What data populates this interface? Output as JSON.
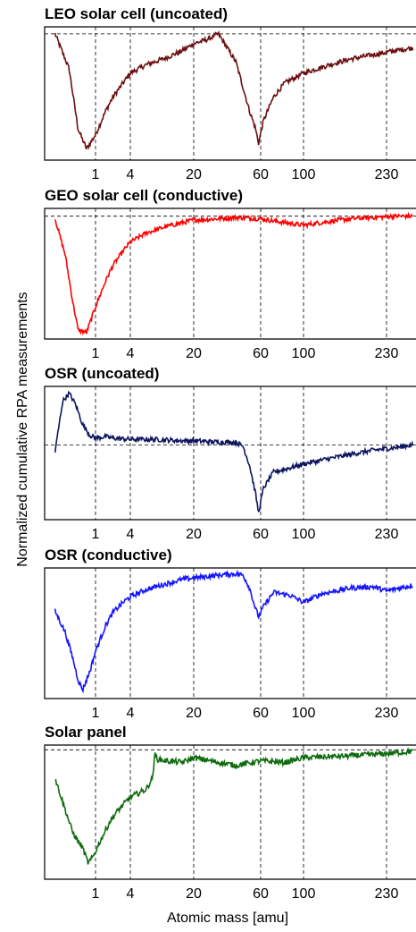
{
  "figure": {
    "ylabel": "Normalized cumulative RPA measurements",
    "xlabel": "Atomic mass [amu]"
  },
  "chart_data": [
    {
      "type": "line",
      "title": "LEO solar cell (uncoated)",
      "xlabel": "",
      "ylabel": "",
      "x_tick_labels": [
        "1",
        "4",
        "20",
        "60",
        "100",
        "230"
      ],
      "x_tick_values": [
        1,
        4,
        20,
        60,
        100,
        230
      ],
      "y_reference": 1.0,
      "grid": "dashed at x ticks and y reference",
      "series": [
        {
          "color": "#6b0f12",
          "x": [
            0.2,
            0.35,
            0.5,
            0.7,
            1,
            1.5,
            2,
            3,
            4,
            6,
            10,
            15,
            20,
            25,
            30,
            40,
            50,
            55,
            58,
            62,
            70,
            80,
            100,
            130,
            160,
            200,
            250,
            300
          ],
          "y": [
            1.0,
            0.75,
            0.32,
            0.18,
            0.28,
            0.45,
            0.55,
            0.65,
            0.72,
            0.78,
            0.83,
            0.88,
            0.93,
            0.96,
            1.0,
            0.8,
            0.45,
            0.33,
            0.22,
            0.38,
            0.55,
            0.65,
            0.72,
            0.78,
            0.82,
            0.85,
            0.88,
            0.9
          ]
        }
      ]
    },
    {
      "type": "line",
      "title": "GEO solar cell (conductive)",
      "xlabel": "",
      "ylabel": "",
      "x_tick_labels": [
        "1",
        "4",
        "20",
        "60",
        "100",
        "230"
      ],
      "x_tick_values": [
        1,
        4,
        20,
        60,
        100,
        230
      ],
      "y_reference": 1.0,
      "grid": "dashed at x ticks and y reference",
      "series": [
        {
          "color": "#ff0000",
          "x": [
            0.2,
            0.3,
            0.4,
            0.5,
            0.7,
            1,
            1.5,
            2,
            3,
            4,
            6,
            10,
            15,
            20,
            30,
            40,
            60,
            80,
            100,
            130,
            160,
            200,
            250,
            300
          ],
          "y": [
            0.98,
            0.7,
            0.35,
            0.12,
            0.1,
            0.3,
            0.5,
            0.62,
            0.73,
            0.8,
            0.87,
            0.92,
            0.95,
            0.97,
            0.98,
            0.99,
            0.98,
            0.95,
            0.93,
            0.96,
            0.98,
            0.99,
            1.0,
            1.0
          ]
        }
      ]
    },
    {
      "type": "line",
      "title": "OSR (uncoated)",
      "xlabel": "",
      "ylabel": "",
      "x_tick_labels": [
        "1",
        "4",
        "20",
        "60",
        "100",
        "230"
      ],
      "x_tick_values": [
        1,
        4,
        20,
        60,
        100,
        230
      ],
      "y_reference": 1.0,
      "grid": "dashed at x ticks and y reference",
      "series": [
        {
          "color": "#0d1560",
          "x": [
            0.2,
            0.27,
            0.35,
            0.45,
            0.6,
            0.8,
            1,
            1.5,
            2,
            4,
            8,
            15,
            20,
            30,
            40,
            45,
            50,
            55,
            58,
            62,
            70,
            80,
            100,
            130,
            160,
            200,
            250,
            300
          ],
          "y": [
            0.95,
            1.32,
            1.38,
            1.3,
            1.15,
            1.07,
            1.05,
            1.06,
            1.05,
            1.04,
            1.04,
            1.03,
            1.03,
            1.02,
            1.02,
            0.99,
            0.85,
            0.65,
            0.5,
            0.68,
            0.8,
            0.82,
            0.86,
            0.9,
            0.93,
            0.96,
            0.98,
            1.0
          ]
        }
      ]
    },
    {
      "type": "line",
      "title": "OSR (conductive)",
      "xlabel": "",
      "ylabel": "",
      "x_tick_labels": [
        "1",
        "4",
        "20",
        "60",
        "100",
        "230"
      ],
      "x_tick_values": [
        1,
        4,
        20,
        60,
        100,
        230
      ],
      "y_reference": 1.0,
      "grid": "dashed at x ticks and y reference",
      "series": [
        {
          "color": "#1414ff",
          "x": [
            0.2,
            0.3,
            0.4,
            0.5,
            0.6,
            0.8,
            1,
            1.5,
            2,
            3,
            4,
            6,
            10,
            15,
            20,
            30,
            40,
            45,
            50,
            55,
            58,
            62,
            70,
            85,
            100,
            120,
            160,
            200,
            230,
            300
          ],
          "y": [
            0.7,
            0.55,
            0.38,
            0.22,
            0.15,
            0.28,
            0.42,
            0.6,
            0.69,
            0.76,
            0.8,
            0.85,
            0.89,
            0.92,
            0.93,
            0.95,
            0.96,
            0.95,
            0.86,
            0.72,
            0.66,
            0.73,
            0.83,
            0.81,
            0.76,
            0.82,
            0.86,
            0.87,
            0.84,
            0.88
          ]
        }
      ]
    },
    {
      "type": "line",
      "title": "Solar panel",
      "xlabel": "Atomic mass [amu]",
      "ylabel": "",
      "x_tick_labels": [
        "1",
        "4",
        "20",
        "60",
        "100",
        "230"
      ],
      "x_tick_values": [
        1,
        4,
        20,
        60,
        100,
        230
      ],
      "y_reference": 1.0,
      "grid": "dashed at x ticks and y reference",
      "series": [
        {
          "color": "#0e6b0e",
          "x": [
            0.2,
            0.3,
            0.4,
            0.5,
            0.6,
            0.75,
            0.9,
            1.2,
            1.8,
            2.5,
            4,
            6,
            7,
            7.5,
            8,
            10,
            15,
            20,
            30,
            40,
            60,
            80,
            100,
            150,
            200,
            250,
            300
          ],
          "y": [
            0.82,
            0.62,
            0.48,
            0.42,
            0.38,
            0.28,
            0.32,
            0.42,
            0.55,
            0.62,
            0.7,
            0.75,
            0.82,
            0.97,
            0.94,
            0.93,
            0.92,
            0.95,
            0.92,
            0.9,
            0.93,
            0.92,
            0.95,
            0.96,
            0.97,
            0.98,
            0.99
          ]
        }
      ]
    }
  ]
}
